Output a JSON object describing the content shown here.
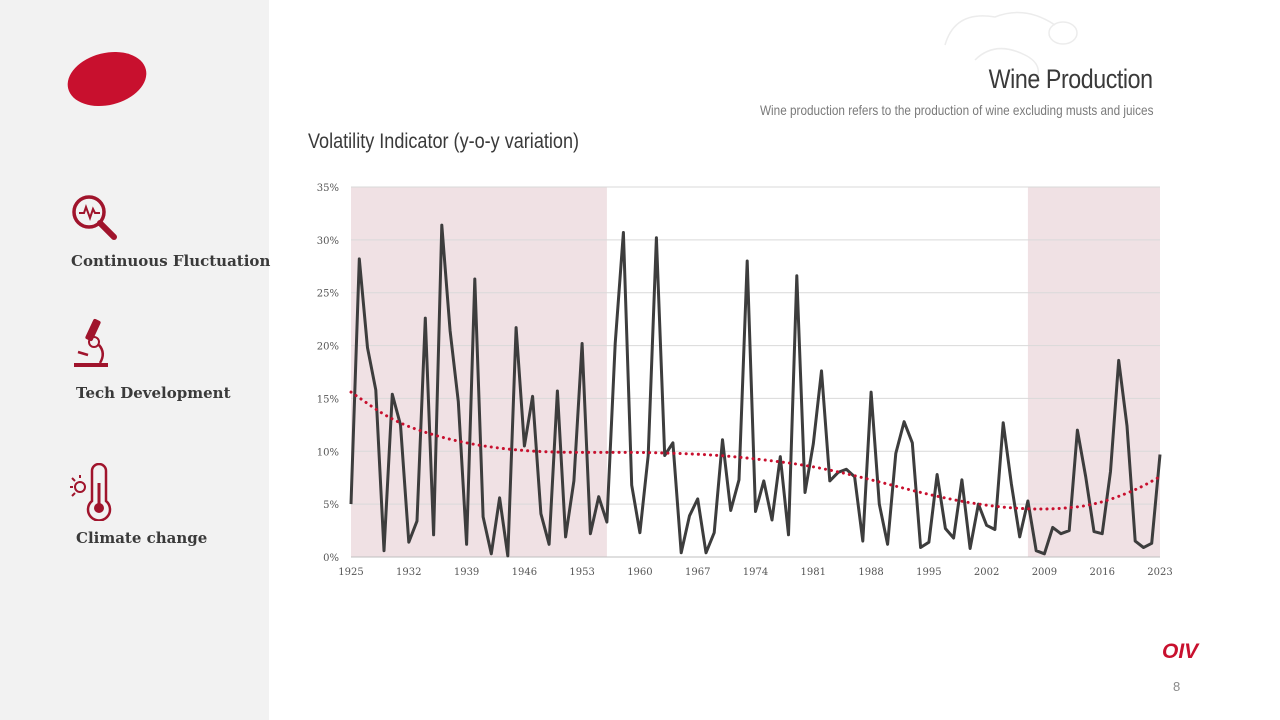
{
  "header": {
    "title": "Wine Production",
    "subtitle": "Wine production refers to the production of wine excluding musts and juices"
  },
  "sidebar": {
    "items": [
      {
        "label": "Continuous Fluctuation",
        "icon": "magnifier-pulse-icon"
      },
      {
        "label": "Tech Development",
        "icon": "microscope-icon"
      },
      {
        "label": "Climate change",
        "icon": "thermometer-icon"
      }
    ]
  },
  "footer": {
    "brand": "OIV",
    "page_number": "8"
  },
  "colors": {
    "accent": "#c8102e",
    "line": "#3d3d3d",
    "shade": "#f0e1e4",
    "trend": "#c8102e",
    "sidebar": "#f2f2f2"
  },
  "chart_data": {
    "type": "line",
    "title": "Volatility Indicator (y-o-y variation)",
    "xlabel": "",
    "ylabel": "",
    "xlim": [
      1925,
      2023
    ],
    "ylim": [
      0,
      35
    ],
    "y_ticks": [
      "0%",
      "5%",
      "10%",
      "15%",
      "20%",
      "25%",
      "30%",
      "35%"
    ],
    "x_ticks": [
      1925,
      1932,
      1939,
      1946,
      1953,
      1960,
      1967,
      1974,
      1981,
      1988,
      1995,
      2002,
      2009,
      2016,
      2023
    ],
    "grid": "horizontal",
    "shaded_ranges": [
      [
        1925,
        1956
      ],
      [
        2007,
        2023
      ]
    ],
    "series": [
      {
        "name": "Volatility",
        "x": [
          1925,
          1926,
          1927,
          1928,
          1929,
          1930,
          1931,
          1932,
          1933,
          1934,
          1935,
          1936,
          1937,
          1938,
          1939,
          1940,
          1941,
          1942,
          1943,
          1944,
          1945,
          1946,
          1947,
          1948,
          1949,
          1950,
          1951,
          1952,
          1953,
          1954,
          1955,
          1956,
          1957,
          1958,
          1959,
          1960,
          1961,
          1962,
          1963,
          1964,
          1965,
          1966,
          1967,
          1968,
          1969,
          1970,
          1971,
          1972,
          1973,
          1974,
          1975,
          1976,
          1977,
          1978,
          1979,
          1980,
          1981,
          1982,
          1983,
          1984,
          1985,
          1986,
          1987,
          1988,
          1989,
          1990,
          1991,
          1992,
          1993,
          1994,
          1995,
          1996,
          1997,
          1998,
          1999,
          2000,
          2001,
          2002,
          2003,
          2004,
          2005,
          2006,
          2007,
          2008,
          2009,
          2010,
          2011,
          2012,
          2013,
          2014,
          2015,
          2016,
          2017,
          2018,
          2019,
          2020,
          2021,
          2022,
          2023
        ],
        "values": [
          5.0,
          28.2,
          19.8,
          15.8,
          0.6,
          15.4,
          12.5,
          1.4,
          3.4,
          22.6,
          2.1,
          31.4,
          21.4,
          14.7,
          1.2,
          26.3,
          3.8,
          0.3,
          5.6,
          0.1,
          21.7,
          10.5,
          15.2,
          4.1,
          1.2,
          15.7,
          1.9,
          7.2,
          20.2,
          2.2,
          5.7,
          3.3,
          20.2,
          30.7,
          6.8,
          2.3,
          9.6,
          30.2,
          9.6,
          10.8,
          0.4,
          3.9,
          5.5,
          0.4,
          2.3,
          11.1,
          4.4,
          7.3,
          28.0,
          4.3,
          7.2,
          3.5,
          9.5,
          2.1,
          26.6,
          6.1,
          10.7,
          17.6,
          7.2,
          8.0,
          8.3,
          7.6,
          1.5,
          15.6,
          5.0,
          1.2,
          9.8,
          12.8,
          10.8,
          0.9,
          1.4,
          7.8,
          2.7,
          1.8,
          7.3,
          0.8,
          5.0,
          3.0,
          2.6,
          12.7,
          6.9,
          1.9,
          5.3,
          0.6,
          0.3,
          2.8,
          2.2,
          2.5,
          12.0,
          7.6,
          2.4,
          2.2,
          8.1,
          18.6,
          12.4,
          1.5,
          0.9,
          1.3,
          9.7
        ]
      },
      {
        "name": "Trend (polynomial)",
        "style": "dotted",
        "x": [
          1925,
          1930,
          1935,
          1940,
          1945,
          1950,
          1955,
          1960,
          1965,
          1970,
          1975,
          1980,
          1985,
          1990,
          1995,
          2000,
          2005,
          2010,
          2015,
          2020,
          2023
        ],
        "values": [
          15.6,
          12.9,
          11.5,
          10.6,
          10.1,
          9.9,
          9.9,
          9.9,
          9.8,
          9.6,
          9.2,
          8.7,
          7.9,
          6.9,
          5.9,
          5.1,
          4.6,
          4.5,
          4.9,
          6.3,
          7.6
        ]
      }
    ]
  }
}
